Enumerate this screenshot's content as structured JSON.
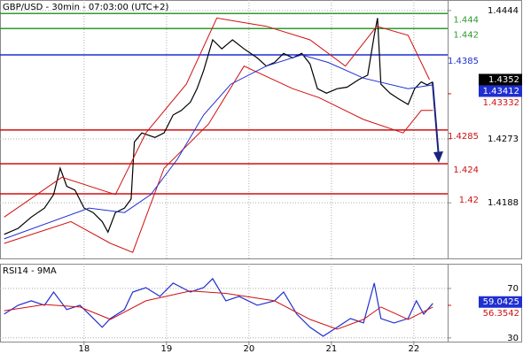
{
  "chart_data": [
    {
      "type": "line",
      "title": "GBP/USD - 30min - 07:03:00 (UTC+2)",
      "xlim": [
        16.98,
        22.41
      ],
      "ylim": [
        1.4114,
        1.4458
      ],
      "yticks": [
        1.4444,
        1.4273,
        1.4188
      ],
      "grid": true,
      "levels": [
        {
          "value": 1.444,
          "color": "#2e9b2e"
        },
        {
          "value": 1.442,
          "color": "#2e9b2e"
        },
        {
          "value": 1.4385,
          "color": "#1f2fd0"
        },
        {
          "value": 1.4285,
          "color": "#d01010"
        },
        {
          "value": 1.424,
          "color": "#d01010"
        },
        {
          "value": 1.42,
          "color": "#d01010"
        }
      ],
      "series": [
        {
          "color": "#000000",
          "x": [
            17.03,
            17.2,
            17.36,
            17.52,
            17.63,
            17.71,
            17.79,
            17.89,
            18.0,
            18.11,
            18.22,
            18.29,
            18.38,
            18.49,
            18.57,
            18.61,
            18.7,
            18.86,
            18.97,
            19.08,
            19.18,
            19.29,
            19.37,
            19.45,
            19.56,
            19.67,
            19.8,
            19.94,
            20.1,
            20.21,
            20.31,
            20.42,
            20.53,
            20.64,
            20.74,
            20.83,
            20.94,
            21.07,
            21.19,
            21.33,
            21.44,
            21.52,
            21.56,
            21.6,
            21.71,
            21.82,
            21.93,
            22.01,
            22.09,
            22.16,
            22.23
          ],
          "values": [
            1.4146,
            1.4154,
            1.4169,
            1.4181,
            1.4199,
            1.4234,
            1.421,
            1.4205,
            1.4181,
            1.4175,
            1.4163,
            1.4149,
            1.4175,
            1.4181,
            1.4193,
            1.4269,
            1.4281,
            1.4275,
            1.4281,
            1.4305,
            1.4311,
            1.4322,
            1.434,
            1.4364,
            1.4405,
            1.4393,
            1.4405,
            1.4393,
            1.4381,
            1.437,
            1.4375,
            1.4387,
            1.4381,
            1.4387,
            1.4373,
            1.434,
            1.4334,
            1.434,
            1.4342,
            1.4352,
            1.4358,
            1.4411,
            1.4434,
            1.4346,
            1.4334,
            1.4326,
            1.4319,
            1.434,
            1.4349,
            1.4345,
            1.4349
          ]
        },
        {
          "color": "#d01010",
          "x": [
            17.03,
            17.73,
            18.38,
            18.75,
            19.24,
            19.61,
            20.21,
            20.74,
            21.17,
            21.55,
            21.93,
            22.19
          ],
          "values": [
            1.4169,
            1.4222,
            1.4199,
            1.4281,
            1.4346,
            1.4434,
            1.4423,
            1.4405,
            1.437,
            1.4423,
            1.4411,
            1.4352
          ]
        },
        {
          "color": "#d01010",
          "x": [
            17.03,
            17.84,
            18.32,
            18.59,
            18.97,
            19.51,
            19.94,
            20.53,
            20.85,
            21.39,
            21.87,
            22.09,
            22.23
          ],
          "values": [
            1.4134,
            1.4163,
            1.4134,
            1.4122,
            1.4234,
            1.4293,
            1.437,
            1.434,
            1.4328,
            1.4299,
            1.4281,
            1.4311,
            1.4311
          ]
        },
        {
          "color": "#1f2fd0",
          "x": [
            17.03,
            18.06,
            18.49,
            18.81,
            19.13,
            19.45,
            19.78,
            20.21,
            20.64,
            20.96,
            21.39,
            21.93,
            22.23
          ],
          "values": [
            1.414,
            1.4181,
            1.4175,
            1.4199,
            1.4246,
            1.4305,
            1.4346,
            1.437,
            1.4385,
            1.4375,
            1.4354,
            1.434,
            1.4345
          ]
        }
      ],
      "last_values": [
        {
          "value": 1.4352,
          "color": "#000000",
          "boxed": true
        },
        {
          "value": 1.43412,
          "color": "#1f2fd0",
          "boxed": true
        },
        {
          "value": 1.43332,
          "color": "#d01010",
          "boxed": false
        }
      ]
    },
    {
      "type": "line",
      "title": "RSI14 - 9MA",
      "xlim": [
        16.98,
        22.41
      ],
      "xticks": [
        18,
        19,
        20,
        21,
        22
      ],
      "ylim": [
        27,
        90
      ],
      "yticks": [
        70,
        30
      ],
      "grid": true,
      "series": [
        {
          "color": "#1f2fd0",
          "x": [
            17.03,
            17.2,
            17.36,
            17.52,
            17.63,
            17.79,
            17.95,
            18.06,
            18.22,
            18.32,
            18.49,
            18.59,
            18.75,
            18.92,
            19.08,
            19.29,
            19.45,
            19.56,
            19.72,
            19.88,
            20.1,
            20.31,
            20.42,
            20.58,
            20.74,
            20.9,
            21.07,
            21.23,
            21.39,
            21.52,
            21.6,
            21.76,
            21.93,
            22.03,
            22.12,
            22.23
          ],
          "values": [
            49.3,
            56.4,
            60,
            56.4,
            67.1,
            52.9,
            56.4,
            49.3,
            38.6,
            45.7,
            52.9,
            67.1,
            70.7,
            63.6,
            74.3,
            67.1,
            70.7,
            77.9,
            60,
            63.6,
            56.4,
            60,
            67.1,
            49.3,
            38.6,
            31.4,
            38.6,
            45.7,
            42.1,
            74.3,
            45.7,
            42.1,
            45.7,
            60,
            49.3,
            57.9
          ]
        },
        {
          "color": "#d01010",
          "x": [
            17.03,
            17.52,
            17.95,
            18.32,
            18.75,
            19.29,
            19.72,
            20.31,
            20.74,
            21.07,
            21.39,
            21.6,
            21.93,
            22.23
          ],
          "values": [
            52,
            57,
            55,
            45,
            60,
            68,
            66,
            60,
            45,
            37,
            45,
            55,
            45,
            55
          ]
        }
      ],
      "last_values": [
        {
          "value": 59.0425,
          "color": "#1f2fd0",
          "boxed": true
        },
        {
          "value": 56.3542,
          "color": "#d01010",
          "boxed": false
        }
      ]
    }
  ]
}
